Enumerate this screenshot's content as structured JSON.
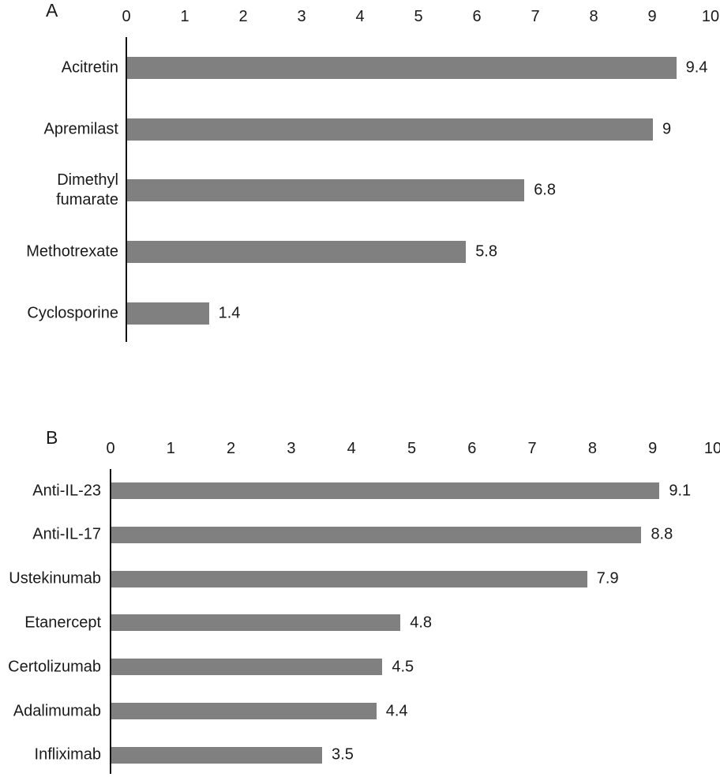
{
  "figure": {
    "background": "#ffffff",
    "bar_color": "#808080",
    "axis_color": "#111111",
    "text_color": "#1a1a1a"
  },
  "chart_data": [
    {
      "type": "bar",
      "orientation": "horizontal",
      "panel_label": "A",
      "title": "",
      "xlabel": "",
      "ylabel": "",
      "xlim": [
        0,
        10
      ],
      "x_ticks": [
        "0",
        "1",
        "2",
        "3",
        "4",
        "5",
        "6",
        "7",
        "8",
        "9",
        "10"
      ],
      "grid": false,
      "legend": false,
      "categories": [
        "Acitretin",
        "Apremilast",
        "Dimethyl fumarate",
        "Methotrexate",
        "Cyclosporine"
      ],
      "values": [
        9.4,
        9,
        6.8,
        5.8,
        1.4
      ],
      "value_labels": [
        "9.4",
        "9",
        "6.8",
        "5.8",
        "1.4"
      ]
    },
    {
      "type": "bar",
      "orientation": "horizontal",
      "panel_label": "B",
      "title": "",
      "xlabel": "",
      "ylabel": "",
      "xlim": [
        0,
        10
      ],
      "x_ticks": [
        "0",
        "1",
        "2",
        "3",
        "4",
        "5",
        "6",
        "7",
        "8",
        "9",
        "10"
      ],
      "grid": false,
      "legend": false,
      "categories": [
        "Anti-IL-23",
        "Anti-IL-17",
        "Ustekinumab",
        "Etanercept",
        "Certolizumab",
        "Adalimumab",
        "Infliximab"
      ],
      "values": [
        9.1,
        8.8,
        7.9,
        4.8,
        4.5,
        4.4,
        3.5
      ],
      "value_labels": [
        "9.1",
        "8.8",
        "7.9",
        "4.8",
        "4.5",
        "4.4",
        "3.5"
      ]
    }
  ]
}
